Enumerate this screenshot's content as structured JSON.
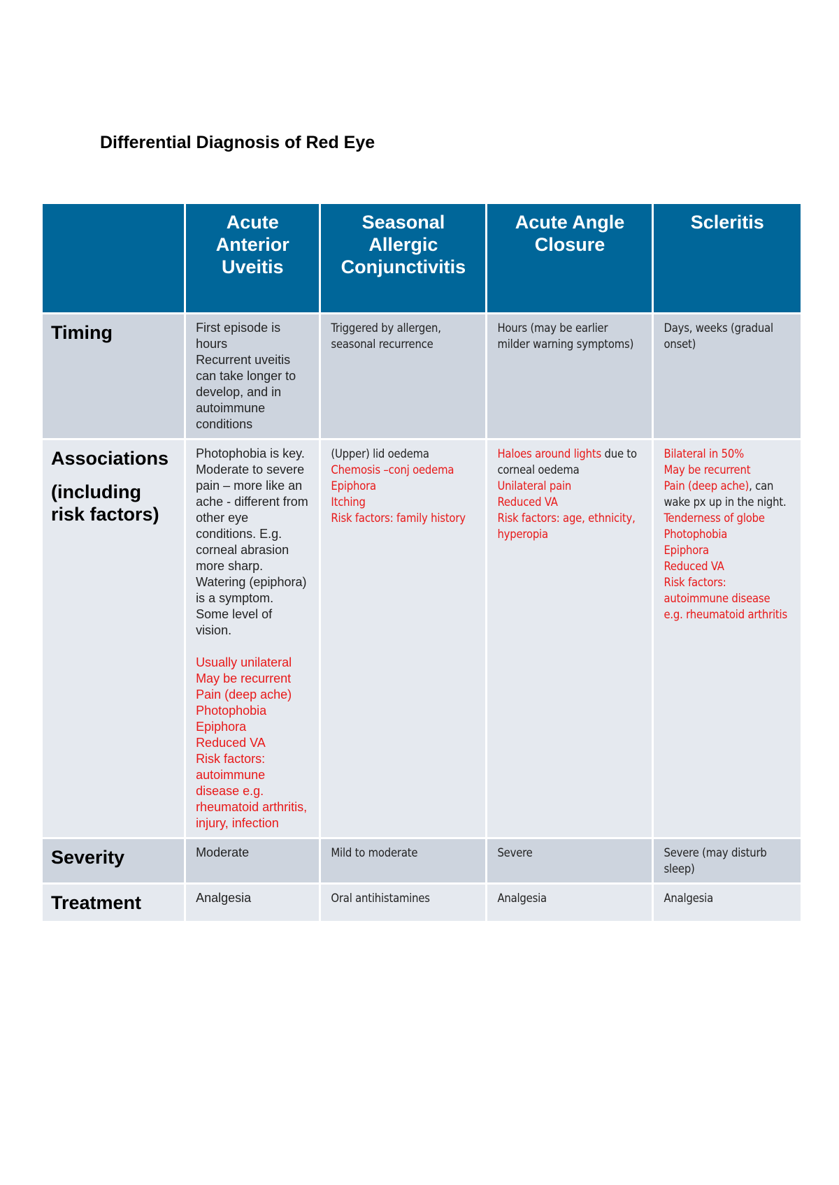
{
  "title": "Differential Diagnosis of Red Eye",
  "table": {
    "header": [
      "Acute Anterior Uveitis",
      "Seasonal Allergic Conjunctivitis",
      "Acute Angle Closure",
      "Scleritis"
    ],
    "rows": [
      {
        "label": [
          "Timing"
        ],
        "cells": [
          [
            [
              {
                "text": "First episode is hours"
              }
            ],
            [
              {
                "text": "Recurrent uveitis can take longer to develop, and in autoimmune conditions"
              }
            ]
          ],
          [
            [
              {
                "text": "Triggered by allergen, seasonal recurrence"
              }
            ]
          ],
          [
            [
              {
                "text": "Hours (may be earlier milder warning symptoms)"
              }
            ]
          ],
          [
            [
              {
                "text": "Days, weeks (gradual onset)"
              }
            ]
          ]
        ]
      },
      {
        "label": [
          "Associations",
          "(including risk factors)"
        ],
        "cells": [
          [
            [
              {
                "text": "Photophobia is key."
              }
            ],
            [
              {
                "text": "Moderate to severe pain – more like an ache -  different from other eye conditions. E.g. corneal abrasion more sharp."
              }
            ],
            [
              {
                "text": "Watering (epiphora) is a symptom."
              }
            ],
            [
              {
                "text": "Some level of vision."
              }
            ],
            [
              {
                "text": "Usually unilateral",
                "red": true
              }
            ],
            [
              {
                "text": "May be recurrent",
                "red": true
              }
            ],
            [
              {
                "text": "Pain (deep ache)",
                "red": true
              }
            ],
            [
              {
                "text": "Photophobia",
                "red": true
              }
            ],
            [
              {
                "text": "Epiphora",
                "red": true
              }
            ],
            [
              {
                "text": "Reduced VA",
                "red": true
              }
            ],
            [
              {
                "text": "Risk factors: autoimmune disease e.g. rheumatoid arthritis, injury, infection",
                "red": true
              }
            ]
          ],
          [
            [
              {
                "text": "(Upper) lid oedema"
              }
            ],
            [
              {
                "text": "Chemosis –conj oedema",
                "red": true
              }
            ],
            [
              {
                "text": "Epiphora",
                "red": true
              }
            ],
            [
              {
                "text": "Itching",
                "red": true
              }
            ],
            [
              {
                "text": "Risk factors: family history",
                "red": true
              }
            ]
          ],
          [
            [
              {
                "text": "Haloes around lights",
                "red": true
              },
              {
                "text": " due to corneal oedema"
              }
            ],
            [
              {
                "text": "Unilateral pain",
                "red": true
              }
            ],
            [
              {
                "text": "Reduced VA",
                "red": true
              }
            ],
            [
              {
                "text": "Risk factors: age, ethnicity, hyperopia",
                "red": true
              }
            ]
          ],
          [
            [
              {
                "text": "Bilateral in 50%",
                "red": true
              }
            ],
            [
              {
                "text": "May be recurrent",
                "red": true
              }
            ],
            [
              {
                "text": "Pain (deep ache)",
                "red": true
              },
              {
                "text": ", can wake px up in the night."
              }
            ],
            [
              {
                "text": "Tenderness of globe",
                "red": true
              }
            ],
            [
              {
                "text": "Photophobia",
                "red": true
              }
            ],
            [
              {
                "text": "Epiphora",
                "red": true
              }
            ],
            [
              {
                "text": "Reduced VA",
                "red": true
              }
            ],
            [
              {
                "text": "Risk factors: autoimmune disease e.g. rheumatoid arthritis",
                "red": true
              }
            ]
          ]
        ]
      },
      {
        "label": [
          "Severity"
        ],
        "cells": [
          [
            [
              {
                "text": "Moderate"
              }
            ]
          ],
          [
            [
              {
                "text": "Mild to moderate"
              }
            ]
          ],
          [
            [
              {
                "text": "Severe"
              }
            ]
          ],
          [
            [
              {
                "text": "Severe (may disturb sleep)"
              }
            ]
          ]
        ]
      },
      {
        "label": [
          "Treatment"
        ],
        "cells": [
          [
            [
              {
                "text": "Analgesia"
              }
            ]
          ],
          [
            [
              {
                "text": "Oral antihistamines"
              }
            ]
          ],
          [
            [
              {
                "text": "Analgesia"
              }
            ]
          ],
          [
            [
              {
                "text": "Analgesia"
              }
            ]
          ]
        ]
      }
    ]
  }
}
